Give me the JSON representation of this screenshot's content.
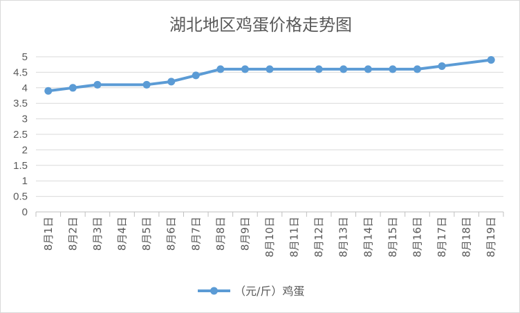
{
  "chart_data": {
    "type": "line",
    "title": "湖北地区鸡蛋价格走势图",
    "categories": [
      "8月1日",
      "8月2日",
      "8月3日",
      "8月4日",
      "8月5日",
      "8月6日",
      "8月7日",
      "8月8日",
      "8月9日",
      "8月10日",
      "8月11日",
      "8月12日",
      "8月13日",
      "8月14日",
      "8月15日",
      "8月16日",
      "8月17日",
      "8月18日",
      "8月19日"
    ],
    "series": [
      {
        "name": "（元/斤）鸡蛋",
        "color": "#5b9bd5",
        "values": [
          3.9,
          4.0,
          4.1,
          null,
          4.1,
          4.2,
          4.4,
          4.6,
          4.6,
          4.6,
          null,
          4.6,
          4.6,
          4.6,
          4.6,
          4.6,
          4.7,
          null,
          4.9
        ]
      }
    ],
    "y_ticks": [
      "0",
      "0.5",
      "1",
      "1.5",
      "2",
      "2.5",
      "3",
      "3.5",
      "4",
      "4.5",
      "5"
    ],
    "ylim": [
      0,
      5
    ],
    "grid": true,
    "legend_position": "bottom"
  }
}
